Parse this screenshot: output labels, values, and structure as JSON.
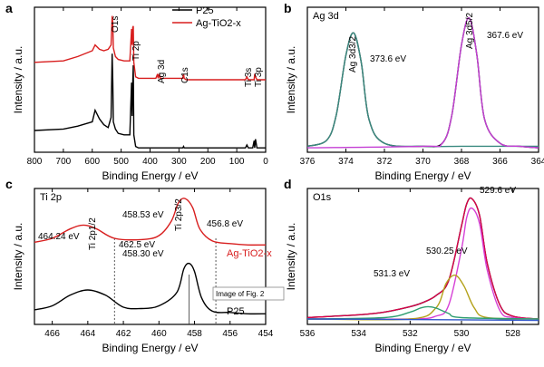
{
  "chart_data": [
    {
      "panel": "a",
      "type": "line",
      "title": "",
      "xlabel": "Binding Energy / eV",
      "ylabel": "Intensity / a.u.",
      "xlim": [
        800,
        0
      ],
      "ylim": [
        0,
        100
      ],
      "x_ticks": [
        800,
        700,
        600,
        500,
        400,
        300,
        200,
        100,
        0
      ],
      "series": [
        {
          "name": "P25",
          "color": "#000000",
          "x": [
            800,
            700,
            650,
            600,
            590,
            575,
            560,
            545,
            535,
            531,
            529,
            527,
            520,
            510,
            490,
            470,
            464,
            462,
            460,
            458,
            456,
            450,
            440,
            400,
            300,
            287,
            284,
            282,
            275,
            200,
            100,
            70,
            65,
            60,
            55,
            45,
            40,
            38,
            35,
            30,
            10,
            0
          ],
          "y": [
            15,
            16,
            18,
            21,
            29,
            23,
            19,
            17,
            24,
            68,
            49,
            21,
            16,
            13,
            12,
            12,
            48,
            25,
            48,
            60,
            12,
            4,
            3,
            3,
            3,
            3,
            4,
            3,
            3,
            3,
            3,
            3,
            5,
            3,
            3,
            3,
            8,
            3,
            9,
            3,
            3,
            3
          ]
        },
        {
          "name": "Ag-TiO2-x",
          "color": "#d81e1e",
          "x": [
            800,
            700,
            650,
            600,
            590,
            575,
            560,
            545,
            535,
            531,
            529,
            527,
            520,
            510,
            490,
            470,
            464,
            462,
            460,
            458,
            456,
            450,
            440,
            400,
            380,
            374,
            372,
            368,
            365,
            350,
            300,
            287,
            284,
            282,
            275,
            200,
            100,
            70,
            65,
            60,
            40,
            38,
            35,
            30,
            10,
            0
          ],
          "y": [
            62,
            63,
            66,
            70,
            74,
            71,
            70,
            71,
            74,
            94,
            89,
            72,
            66,
            64,
            63,
            63,
            85,
            74,
            86,
            87,
            62,
            52,
            51,
            51,
            51,
            54,
            51,
            54,
            51,
            51,
            51,
            51,
            54,
            51,
            50,
            50,
            50,
            50,
            52,
            50,
            50,
            54,
            52,
            50,
            50,
            50
          ]
        }
      ],
      "annotations": [
        "O1s",
        "Ti 2p",
        "Ag 3d",
        "C1s",
        "Ti 3s",
        "Ti 3p"
      ],
      "legend": [
        "P25",
        "Ag-TiO2-x"
      ]
    },
    {
      "panel": "b",
      "type": "line",
      "title": "Ag 3d",
      "xlabel": "Binding Energy / eV",
      "ylabel": "Intensity / a.u.",
      "xlim": [
        376,
        364
      ],
      "x_ticks": [
        376,
        374,
        372,
        370,
        368,
        366,
        364
      ],
      "series": [
        {
          "name": "",
          "color": "#000000",
          "x": [
            376,
            375,
            374.5,
            374,
            373.6,
            373.2,
            372.8,
            372,
            370,
            369,
            368.5,
            368,
            367.6,
            367.2,
            366.8,
            366,
            365,
            364
          ],
          "y": [
            4,
            8,
            25,
            65,
            80,
            60,
            22,
            6,
            4,
            6,
            25,
            72,
            90,
            65,
            22,
            6,
            4,
            3
          ]
        },
        {
          "name": "",
          "color": "#3a8a80",
          "x": [
            376,
            375,
            374.5,
            374,
            373.6,
            373.2,
            372.8,
            372,
            370,
            368,
            366,
            364
          ],
          "y": [
            4,
            8,
            25,
            65,
            80,
            60,
            22,
            6,
            4,
            4,
            4,
            4
          ]
        },
        {
          "name": "",
          "color": "#c43fd4",
          "x": [
            376,
            370,
            369,
            368.5,
            368,
            367.6,
            367.2,
            366.8,
            366,
            365,
            364
          ],
          "y": [
            3,
            4,
            6,
            25,
            72,
            90,
            65,
            22,
            6,
            4,
            3
          ]
        }
      ],
      "annotations": [
        "Ag 3d3/2",
        "Ag 3d5/2",
        "373.6 eV",
        "367.6 eV"
      ]
    },
    {
      "panel": "c",
      "type": "line",
      "title": "Ti 2p",
      "xlabel": "Binding Energy / eV",
      "ylabel": "Intensity / a.u.",
      "xlim": [
        467,
        454
      ],
      "x_ticks": [
        466,
        464,
        462,
        460,
        458,
        456,
        454
      ],
      "series": [
        {
          "name": "Ag-TiO2-x",
          "color": "#d81e1e",
          "x": [
            467,
            466,
            465,
            464.24,
            463.5,
            462.5,
            461,
            460,
            459.3,
            458.9,
            458.53,
            458.1,
            457.7,
            457,
            456,
            455,
            454
          ],
          "y": [
            62,
            65,
            72,
            75,
            72,
            65,
            64,
            67,
            78,
            92,
            95,
            88,
            72,
            63,
            61,
            60,
            60
          ]
        },
        {
          "name": "P25",
          "color": "#000000",
          "x": [
            467,
            466,
            465,
            464,
            463,
            462,
            461,
            460,
            459,
            458.6,
            458.3,
            458,
            457.6,
            457,
            456,
            455,
            454
          ],
          "y": [
            11,
            14,
            22,
            26,
            22,
            13,
            12,
            14,
            24,
            42,
            46,
            40,
            20,
            10,
            9,
            8,
            8
          ]
        }
      ],
      "annotations": [
        "Ti 2p1/2",
        "Ti 2p3/2",
        "464.24 eV",
        "462.5 eV",
        "458.53 eV",
        "456.8 eV",
        "458.30 eV",
        "Image of Fig. 2"
      ],
      "legend": [
        "Ag-TiO2-x",
        "P25"
      ]
    },
    {
      "panel": "d",
      "type": "line",
      "title": "O1s",
      "xlabel": "Binding Energy / eV",
      "ylabel": "Intensity / a.u.",
      "xlim": [
        536,
        527
      ],
      "x_ticks": [
        536,
        534,
        532,
        530,
        528
      ],
      "series": [
        {
          "name": "",
          "color": "#000000",
          "x": [
            536,
            534,
            533,
            532,
            531.5,
            531,
            530.5,
            530,
            529.8,
            529.6,
            529.3,
            529,
            528.5,
            528,
            527
          ],
          "y": [
            5,
            7,
            9,
            13,
            16,
            21,
            32,
            72,
            88,
            92,
            80,
            45,
            14,
            6,
            4
          ]
        },
        {
          "name": "",
          "color": "#e0004a",
          "x": [
            536,
            534,
            533,
            532,
            531.5,
            531,
            530.5,
            530,
            529.8,
            529.6,
            529.3,
            529,
            528.5,
            528,
            527
          ],
          "y": [
            5,
            7,
            9,
            13,
            16,
            21,
            32,
            72,
            88,
            92,
            80,
            45,
            14,
            6,
            4
          ]
        },
        {
          "name": "",
          "color": "#d640d6",
          "x": [
            536,
            532,
            531,
            530.5,
            530,
            529.8,
            529.6,
            529.3,
            529,
            528.5,
            528,
            527
          ],
          "y": [
            4,
            4,
            6,
            14,
            55,
            78,
            85,
            74,
            40,
            10,
            5,
            4
          ]
        },
        {
          "name": "",
          "color": "#b4a21c",
          "x": [
            536,
            532,
            531,
            530.6,
            530.25,
            529.9,
            529.5,
            529,
            527
          ],
          "y": [
            4,
            4,
            12,
            30,
            36,
            28,
            12,
            5,
            4
          ]
        },
        {
          "name": "",
          "color": "#2f9e70",
          "x": [
            536,
            533,
            532,
            531.6,
            531.3,
            531,
            530.5,
            530,
            527
          ],
          "y": [
            4,
            5,
            9,
            12,
            13,
            12,
            8,
            5,
            4
          ]
        },
        {
          "name": "",
          "color": "#2e55c8",
          "x": [
            536,
            527
          ],
          "y": [
            4,
            3
          ]
        }
      ],
      "annotations": [
        "529.6 eV",
        "530.25 eV",
        "531.3 eV"
      ]
    }
  ]
}
